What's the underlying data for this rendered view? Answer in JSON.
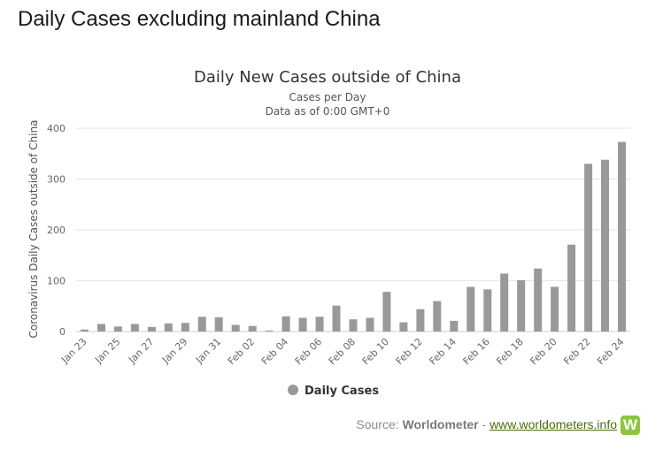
{
  "page": {
    "heading": "Daily Cases excluding mainland China"
  },
  "chart_data": {
    "type": "bar",
    "title": "Daily New Cases outside of China",
    "subtitle_line1": "Cases per Day",
    "subtitle_line2": "Data as of 0:00 GMT+0",
    "ylabel": "Coronavirus Daily Cases outside of China",
    "xlabel": "",
    "ylim": [
      0,
      400
    ],
    "yticks": [
      0,
      100,
      200,
      300,
      400
    ],
    "grid": true,
    "legend_position": "bottom-center",
    "series": [
      {
        "name": "Daily Cases",
        "color": "#999999",
        "values": [
          4,
          15,
          10,
          15,
          9,
          16,
          17,
          29,
          28,
          13,
          11,
          2,
          30,
          27,
          29,
          51,
          24,
          27,
          78,
          18,
          44,
          60,
          21,
          88,
          83,
          114,
          101,
          124,
          88,
          171,
          330,
          338,
          373
        ]
      }
    ],
    "categories": [
      "Jan 23",
      "Jan 24",
      "Jan 25",
      "Jan 26",
      "Jan 27",
      "Jan 28",
      "Jan 29",
      "Jan 30",
      "Jan 31",
      "Feb 01",
      "Feb 02",
      "Feb 03",
      "Feb 04",
      "Feb 05",
      "Feb 06",
      "Feb 07",
      "Feb 08",
      "Feb 09",
      "Feb 10",
      "Feb 11",
      "Feb 12",
      "Feb 13",
      "Feb 14",
      "Feb 15",
      "Feb 16",
      "Feb 17",
      "Feb 18",
      "Feb 19",
      "Feb 20",
      "Feb 21",
      "Feb 22",
      "Feb 23",
      "Feb 24"
    ],
    "tick_labels": [
      "Jan 23",
      "Jan 25",
      "Jan 27",
      "Jan 29",
      "Jan 31",
      "Feb 02",
      "Feb 04",
      "Feb 06",
      "Feb 08",
      "Feb 10",
      "Feb 12",
      "Feb 14",
      "Feb 16",
      "Feb 18",
      "Feb 20",
      "Feb 22",
      "Feb 24"
    ]
  },
  "source": {
    "prefix": "Source: ",
    "brand": "Worldometer",
    "separator": " - ",
    "link": "www.worldometers.info",
    "logo_letter": "W"
  },
  "colors": {
    "bar": "#999999",
    "grid": "#e6e6e6",
    "axis_text": "#666666",
    "logo": "#8cc63f"
  }
}
